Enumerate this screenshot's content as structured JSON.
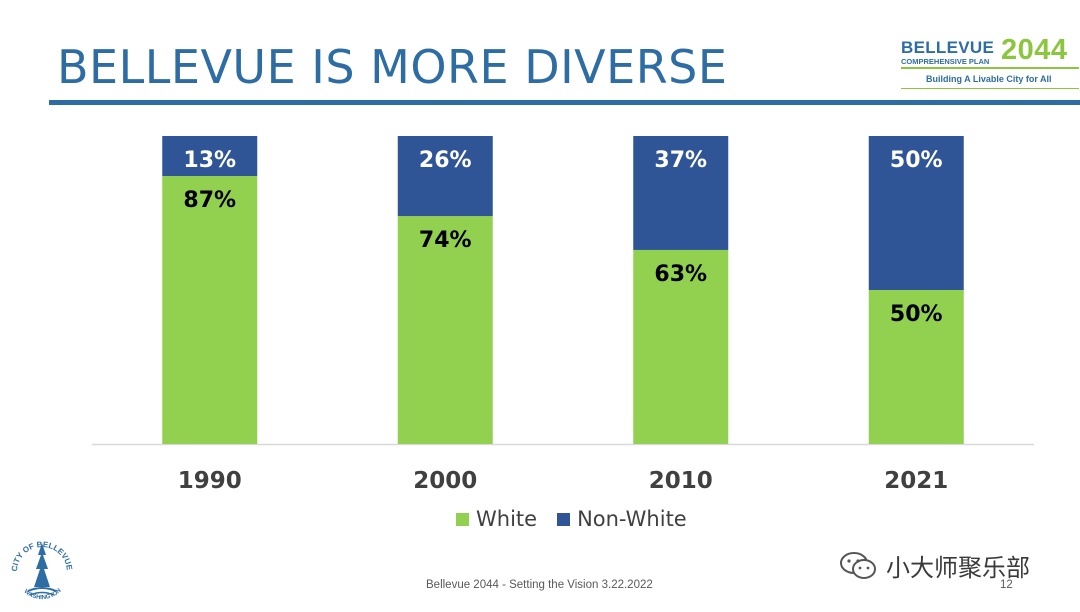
{
  "slide": {
    "title": "BELLEVUE IS MORE DIVERSE",
    "footer": "Bellevue 2044 - Setting the Vision 3.22.2022",
    "page_number": "12",
    "watermark": "小大师聚乐部"
  },
  "logo": {
    "main": "BELLEVUE",
    "year": "2044",
    "subtitle": "COMPREHENSIVE PLAN",
    "tagline": "Building A Livable City for All"
  },
  "seal": {
    "text_top": "CITY OF BELLEVUE",
    "text_bottom": "WASHINGTON"
  },
  "chart_data": {
    "type": "bar",
    "stacked": true,
    "percent": true,
    "categories": [
      "1990",
      "2000",
      "2010",
      "2021"
    ],
    "series": [
      {
        "name": "White",
        "values": [
          87,
          74,
          63,
          50
        ],
        "labels": [
          "87%",
          "74%",
          "63%",
          "50%"
        ],
        "color": "#92D050"
      },
      {
        "name": "Non-White",
        "values": [
          13,
          26,
          37,
          50
        ],
        "labels": [
          "13%",
          "26%",
          "37%",
          "50%"
        ],
        "color": "#2F5597"
      }
    ],
    "ylim": [
      0,
      100
    ],
    "grid": false,
    "legend": "bottom",
    "title": "",
    "xlabel": "",
    "ylabel": ""
  },
  "colors": {
    "title": "#2E6DA4",
    "white_series": "#92D050",
    "nonwhite_series": "#2F5597"
  }
}
